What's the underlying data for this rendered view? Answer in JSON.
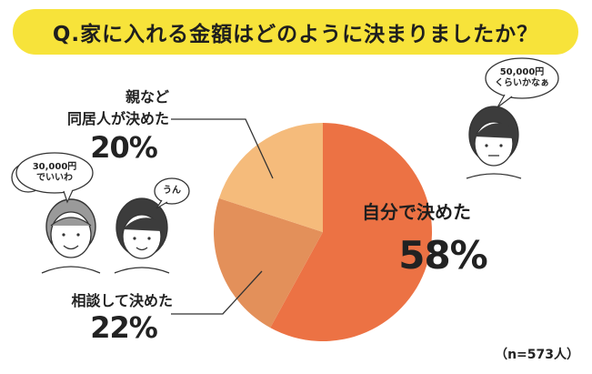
{
  "question": "Q.家に入れる金額はどのように決まりましたか？",
  "sample_size": "（n=573人）",
  "colors": {
    "title_bg": "#f7e33a",
    "self": "#ec7244",
    "consult": "#e3905a",
    "parents": "#f5bb7b",
    "person_face": "#ffffff",
    "person_hair": "#444444"
  },
  "chart_data": {
    "type": "pie",
    "title": "Q.家に入れる金額はどのように決まりましたか？",
    "unit": "%",
    "slices": [
      {
        "label": "自分で決めた",
        "value": 58,
        "display": "58%"
      },
      {
        "label": "相談して決めた",
        "value": 22,
        "display": "22%"
      },
      {
        "label": "親など\n同居人が決めた",
        "label_line1": "親など",
        "label_line2": "同居人が決めた",
        "value": 20,
        "display": "20%"
      }
    ]
  },
  "bubbles": {
    "father": {
      "line1": "30,000円",
      "line2": "でいいわ"
    },
    "mother": {
      "line1": "うん"
    },
    "self_person": {
      "line1": "50,000円",
      "line2": "くらいかなぁ"
    }
  },
  "icons": [
    "father-face-icon",
    "mother-face-icon",
    "self-person-face-icon",
    "speech-bubble-icon"
  ]
}
